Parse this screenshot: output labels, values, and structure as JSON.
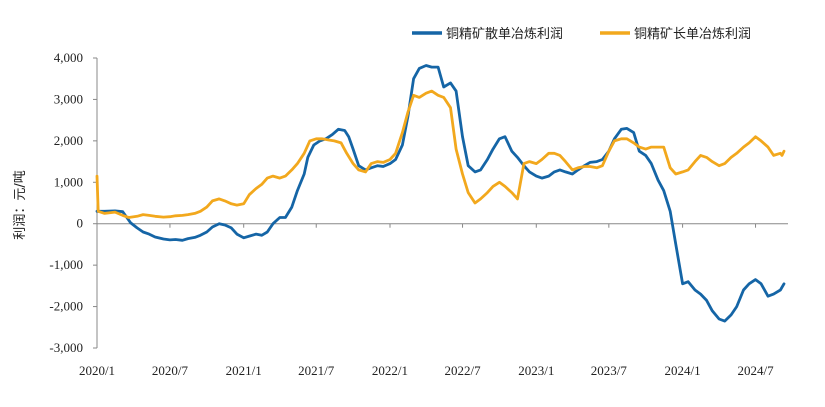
{
  "chart_data": {
    "type": "line",
    "title": "",
    "ylabel": "利润：元/吨",
    "xlabel": "",
    "ylim": [
      -3000,
      4000
    ],
    "yticks": [
      -3000,
      -2000,
      -1000,
      0,
      1000,
      2000,
      3000,
      4000
    ],
    "ytick_labels": [
      "-3,000",
      "-2,000",
      "-1,000",
      "0",
      "1,000",
      "2,000",
      "3,000",
      "4,000"
    ],
    "xlim": [
      "2020-01",
      "2024-12"
    ],
    "xtick_labels": [
      "2020/1",
      "2020/7",
      "2021/1",
      "2021/7",
      "2022/1",
      "2022/7",
      "2023/1",
      "2023/7",
      "2024/1",
      "2024/7"
    ],
    "xticks": [
      "2020-01",
      "2020-07",
      "2021-01",
      "2021-07",
      "2022-01",
      "2022-07",
      "2023-01",
      "2023-07",
      "2024-01",
      "2024-07"
    ],
    "grid": false,
    "legend": "top-right",
    "series": [
      {
        "name": "铜精矿散单冶炼利润",
        "color": "#1565a6",
        "points": [
          [
            "2020-01-01",
            300
          ],
          [
            "2020-01-20",
            300
          ],
          [
            "2020-02-15",
            310
          ],
          [
            "2020-03-05",
            290
          ],
          [
            "2020-03-25",
            20
          ],
          [
            "2020-04-10",
            -100
          ],
          [
            "2020-04-25",
            -200
          ],
          [
            "2020-05-10",
            -250
          ],
          [
            "2020-05-25",
            -320
          ],
          [
            "2020-06-15",
            -370
          ],
          [
            "2020-07-01",
            -390
          ],
          [
            "2020-07-15",
            -380
          ],
          [
            "2020-08-01",
            -400
          ],
          [
            "2020-08-15",
            -360
          ],
          [
            "2020-09-01",
            -330
          ],
          [
            "2020-09-15",
            -280
          ],
          [
            "2020-10-01",
            -200
          ],
          [
            "2020-10-15",
            -80
          ],
          [
            "2020-11-01",
            0
          ],
          [
            "2020-11-15",
            -30
          ],
          [
            "2020-12-01",
            -100
          ],
          [
            "2020-12-15",
            -250
          ],
          [
            "2021-01-01",
            -340
          ],
          [
            "2021-01-15",
            -300
          ],
          [
            "2021-02-01",
            -250
          ],
          [
            "2021-02-15",
            -280
          ],
          [
            "2021-03-01",
            -200
          ],
          [
            "2021-03-15",
            0
          ],
          [
            "2021-04-01",
            150
          ],
          [
            "2021-04-15",
            150
          ],
          [
            "2021-05-01",
            400
          ],
          [
            "2021-05-15",
            800
          ],
          [
            "2021-06-01",
            1200
          ],
          [
            "2021-06-10",
            1600
          ],
          [
            "2021-06-25",
            1900
          ],
          [
            "2021-07-10",
            2000
          ],
          [
            "2021-07-25",
            2050
          ],
          [
            "2021-08-10",
            2150
          ],
          [
            "2021-08-25",
            2280
          ],
          [
            "2021-09-10",
            2250
          ],
          [
            "2021-09-20",
            2100
          ],
          [
            "2021-10-01",
            1800
          ],
          [
            "2021-10-15",
            1400
          ],
          [
            "2021-11-01",
            1300
          ],
          [
            "2021-11-15",
            1350
          ],
          [
            "2021-12-01",
            1400
          ],
          [
            "2021-12-15",
            1380
          ],
          [
            "2022-01-01",
            1450
          ],
          [
            "2022-01-15",
            1550
          ],
          [
            "2022-02-01",
            1900
          ],
          [
            "2022-02-15",
            2600
          ],
          [
            "2022-03-01",
            3500
          ],
          [
            "2022-03-15",
            3750
          ],
          [
            "2022-04-01",
            3820
          ],
          [
            "2022-04-15",
            3780
          ],
          [
            "2022-05-01",
            3780
          ],
          [
            "2022-05-15",
            3300
          ],
          [
            "2022-06-01",
            3400
          ],
          [
            "2022-06-15",
            3200
          ],
          [
            "2022-07-01",
            2100
          ],
          [
            "2022-07-15",
            1400
          ],
          [
            "2022-08-01",
            1250
          ],
          [
            "2022-08-15",
            1300
          ],
          [
            "2022-09-01",
            1550
          ],
          [
            "2022-09-15",
            1800
          ],
          [
            "2022-10-01",
            2050
          ],
          [
            "2022-10-15",
            2100
          ],
          [
            "2022-11-01",
            1750
          ],
          [
            "2022-11-15",
            1600
          ],
          [
            "2022-12-01",
            1400
          ],
          [
            "2022-12-15",
            1250
          ],
          [
            "2023-01-01",
            1150
          ],
          [
            "2023-01-15",
            1100
          ],
          [
            "2023-02-01",
            1150
          ],
          [
            "2023-02-15",
            1250
          ],
          [
            "2023-03-01",
            1300
          ],
          [
            "2023-03-15",
            1250
          ],
          [
            "2023-04-01",
            1200
          ],
          [
            "2023-04-15",
            1300
          ],
          [
            "2023-05-01",
            1400
          ],
          [
            "2023-05-15",
            1480
          ],
          [
            "2023-06-01",
            1500
          ],
          [
            "2023-06-15",
            1550
          ],
          [
            "2023-07-01",
            1750
          ],
          [
            "2023-07-15",
            2050
          ],
          [
            "2023-08-01",
            2280
          ],
          [
            "2023-08-15",
            2300
          ],
          [
            "2023-09-01",
            2200
          ],
          [
            "2023-09-15",
            1750
          ],
          [
            "2023-10-01",
            1650
          ],
          [
            "2023-10-15",
            1450
          ],
          [
            "2023-11-01",
            1050
          ],
          [
            "2023-11-15",
            800
          ],
          [
            "2023-12-01",
            300
          ],
          [
            "2023-12-15",
            -500
          ],
          [
            "2024-01-01",
            -1450
          ],
          [
            "2024-01-15",
            -1400
          ],
          [
            "2024-02-01",
            -1600
          ],
          [
            "2024-02-15",
            -1700
          ],
          [
            "2024-03-01",
            -1850
          ],
          [
            "2024-03-15",
            -2100
          ],
          [
            "2024-04-01",
            -2300
          ],
          [
            "2024-04-15",
            -2350
          ],
          [
            "2024-05-01",
            -2200
          ],
          [
            "2024-05-15",
            -2000
          ],
          [
            "2024-06-01",
            -1600
          ],
          [
            "2024-06-15",
            -1450
          ],
          [
            "2024-07-01",
            -1350
          ],
          [
            "2024-07-15",
            -1450
          ],
          [
            "2024-08-01",
            -1750
          ],
          [
            "2024-08-15",
            -1700
          ],
          [
            "2024-09-01",
            -1600
          ],
          [
            "2024-09-10",
            -1450
          ]
        ]
      },
      {
        "name": "铜精矿长单冶炼利润",
        "color": "#f2a81d",
        "points": [
          [
            "2020-01-01",
            1150
          ],
          [
            "2020-01-04",
            300
          ],
          [
            "2020-01-20",
            250
          ],
          [
            "2020-02-15",
            280
          ],
          [
            "2020-03-05",
            200
          ],
          [
            "2020-03-20",
            150
          ],
          [
            "2020-04-10",
            180
          ],
          [
            "2020-04-25",
            220
          ],
          [
            "2020-05-10",
            200
          ],
          [
            "2020-05-25",
            180
          ],
          [
            "2020-06-15",
            160
          ],
          [
            "2020-07-01",
            170
          ],
          [
            "2020-07-15",
            190
          ],
          [
            "2020-08-01",
            200
          ],
          [
            "2020-08-15",
            220
          ],
          [
            "2020-09-01",
            250
          ],
          [
            "2020-09-15",
            300
          ],
          [
            "2020-10-01",
            400
          ],
          [
            "2020-10-15",
            550
          ],
          [
            "2020-11-01",
            600
          ],
          [
            "2020-11-15",
            550
          ],
          [
            "2020-12-01",
            480
          ],
          [
            "2020-12-15",
            450
          ],
          [
            "2021-01-01",
            480
          ],
          [
            "2021-01-15",
            700
          ],
          [
            "2021-02-01",
            850
          ],
          [
            "2021-02-15",
            950
          ],
          [
            "2021-03-01",
            1100
          ],
          [
            "2021-03-15",
            1150
          ],
          [
            "2021-04-01",
            1100
          ],
          [
            "2021-04-15",
            1150
          ],
          [
            "2021-05-01",
            1300
          ],
          [
            "2021-05-15",
            1450
          ],
          [
            "2021-06-01",
            1700
          ],
          [
            "2021-06-15",
            2000
          ],
          [
            "2021-07-01",
            2050
          ],
          [
            "2021-07-15",
            2050
          ],
          [
            "2021-08-01",
            2020
          ],
          [
            "2021-08-15",
            2000
          ],
          [
            "2021-09-01",
            1950
          ],
          [
            "2021-09-15",
            1700
          ],
          [
            "2021-10-01",
            1450
          ],
          [
            "2021-10-15",
            1300
          ],
          [
            "2021-11-01",
            1250
          ],
          [
            "2021-11-15",
            1450
          ],
          [
            "2021-12-01",
            1500
          ],
          [
            "2021-12-15",
            1480
          ],
          [
            "2022-01-01",
            1550
          ],
          [
            "2022-01-15",
            1700
          ],
          [
            "2022-02-01",
            2200
          ],
          [
            "2022-02-15",
            2700
          ],
          [
            "2022-03-01",
            3100
          ],
          [
            "2022-03-15",
            3050
          ],
          [
            "2022-04-01",
            3150
          ],
          [
            "2022-04-15",
            3200
          ],
          [
            "2022-05-01",
            3100
          ],
          [
            "2022-05-15",
            3050
          ],
          [
            "2022-06-01",
            2800
          ],
          [
            "2022-06-15",
            1800
          ],
          [
            "2022-07-01",
            1200
          ],
          [
            "2022-07-15",
            750
          ],
          [
            "2022-08-01",
            500
          ],
          [
            "2022-08-15",
            600
          ],
          [
            "2022-09-01",
            750
          ],
          [
            "2022-09-15",
            900
          ],
          [
            "2022-10-01",
            1000
          ],
          [
            "2022-10-15",
            900
          ],
          [
            "2022-11-01",
            750
          ],
          [
            "2022-11-15",
            600
          ],
          [
            "2022-12-01",
            1450
          ],
          [
            "2022-12-15",
            1500
          ],
          [
            "2023-01-01",
            1450
          ],
          [
            "2023-01-15",
            1550
          ],
          [
            "2023-02-01",
            1700
          ],
          [
            "2023-02-15",
            1700
          ],
          [
            "2023-03-01",
            1650
          ],
          [
            "2023-03-15",
            1500
          ],
          [
            "2023-04-01",
            1300
          ],
          [
            "2023-04-15",
            1350
          ],
          [
            "2023-05-01",
            1380
          ],
          [
            "2023-05-15",
            1380
          ],
          [
            "2023-06-01",
            1350
          ],
          [
            "2023-06-15",
            1400
          ],
          [
            "2023-07-01",
            1750
          ],
          [
            "2023-07-15",
            2000
          ],
          [
            "2023-08-01",
            2050
          ],
          [
            "2023-08-15",
            2050
          ],
          [
            "2023-09-01",
            1950
          ],
          [
            "2023-09-15",
            1850
          ],
          [
            "2023-10-01",
            1800
          ],
          [
            "2023-10-15",
            1850
          ],
          [
            "2023-11-01",
            1850
          ],
          [
            "2023-11-15",
            1850
          ],
          [
            "2023-12-01",
            1350
          ],
          [
            "2023-12-15",
            1200
          ],
          [
            "2024-01-01",
            1250
          ],
          [
            "2024-01-15",
            1300
          ],
          [
            "2024-02-01",
            1500
          ],
          [
            "2024-02-15",
            1650
          ],
          [
            "2024-03-01",
            1600
          ],
          [
            "2024-03-15",
            1500
          ],
          [
            "2024-04-01",
            1400
          ],
          [
            "2024-04-15",
            1450
          ],
          [
            "2024-05-01",
            1600
          ],
          [
            "2024-05-15",
            1700
          ],
          [
            "2024-06-01",
            1850
          ],
          [
            "2024-06-15",
            1950
          ],
          [
            "2024-07-01",
            2100
          ],
          [
            "2024-07-15",
            2000
          ],
          [
            "2024-08-01",
            1850
          ],
          [
            "2024-08-15",
            1650
          ],
          [
            "2024-09-01",
            1700
          ],
          [
            "2024-09-05",
            1650
          ],
          [
            "2024-09-10",
            1750
          ]
        ]
      }
    ]
  }
}
